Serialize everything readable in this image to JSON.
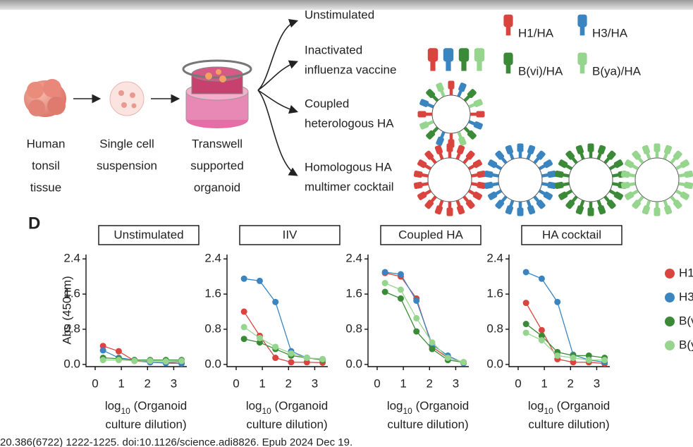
{
  "figure": {
    "steps": [
      {
        "lines": [
          "Human",
          "tonsil",
          "tissue"
        ]
      },
      {
        "lines": [
          "Single cell",
          "suspension"
        ]
      },
      {
        "lines": [
          "Transwell",
          "supported",
          "organoid"
        ]
      }
    ],
    "conditions": [
      {
        "lines": [
          "Unstimulated"
        ]
      },
      {
        "lines": [
          "Inactivated",
          "influenza vaccine"
        ]
      },
      {
        "lines": [
          "Coupled",
          "heterologous HA"
        ]
      },
      {
        "lines": [
          "Homologous HA",
          "multimer cocktail"
        ]
      }
    ],
    "proteins": [
      "H1/HA",
      "H3/HA",
      "B(vi)/HA",
      "B(ya)/HA"
    ],
    "panel_label": "D",
    "citation": "20.386(6722) 1222-1225. doi:10.1126/science.adi8826. Epub 2024 Dec 19."
  },
  "chart_data": [
    {
      "type": "line",
      "title": "Unstimulated",
      "ylabel": "Abs (450nm)",
      "xlabel": {
        "text": "log",
        "subscript": "10",
        "rest": " (Organoid",
        "line2": "culture dilution)"
      },
      "x": [
        0.3,
        0.9,
        1.5,
        2.1,
        2.7,
        3.3
      ],
      "xlim": [
        -0.35,
        3.5
      ],
      "xticks": [
        0,
        1,
        2,
        3
      ],
      "ylim": [
        -0.05,
        2.5
      ],
      "yticks": [
        {
          "value": 0,
          "label": "0.0"
        },
        0.8,
        1.6,
        2.4
      ],
      "series": [
        {
          "name": "H1",
          "color": "#d9453e",
          "values": [
            0.42,
            0.3,
            0.08,
            0.05,
            0.04,
            0.06
          ]
        },
        {
          "name": "H3",
          "color": "#3a84c0",
          "values": [
            0.32,
            0.15,
            0.1,
            0.05,
            0.03,
            0.02
          ]
        },
        {
          "name": "B(vi)",
          "color": "#3a8a37",
          "values": [
            0.15,
            0.13,
            0.1,
            0.1,
            0.1,
            0.1
          ]
        },
        {
          "name": "B(ya)",
          "color": "#95d58e",
          "values": [
            0.1,
            0.1,
            0.08,
            0.08,
            0.07,
            0.08
          ]
        }
      ]
    },
    {
      "type": "line",
      "title": "IIV",
      "xlabel": {
        "text": "log",
        "subscript": "10",
        "rest": " (Organoid",
        "line2": "culture dilution)"
      },
      "x": [
        0.3,
        0.9,
        1.5,
        2.1,
        2.7,
        3.3
      ],
      "xlim": [
        -0.35,
        3.5
      ],
      "xticks": [
        0,
        1,
        2,
        3
      ],
      "ylim": [
        -0.05,
        2.5
      ],
      "yticks": [
        {
          "value": 0,
          "label": "0.0"
        },
        0.8,
        1.6,
        2.4
      ],
      "series": [
        {
          "name": "H1",
          "color": "#d9453e",
          "values": [
            1.2,
            0.65,
            0.15,
            0.05,
            0.05,
            0.04
          ]
        },
        {
          "name": "H3",
          "color": "#3a84c0",
          "values": [
            1.95,
            1.9,
            1.42,
            0.3,
            0.15,
            0.12
          ]
        },
        {
          "name": "B(vi)",
          "color": "#3a8a37",
          "values": [
            0.58,
            0.5,
            0.35,
            0.2,
            0.15,
            0.1
          ]
        },
        {
          "name": "B(ya)",
          "color": "#95d58e",
          "values": [
            0.85,
            0.6,
            0.4,
            0.25,
            0.15,
            0.12
          ]
        }
      ]
    },
    {
      "type": "line",
      "title": "Coupled HA",
      "xlabel": {
        "text": "log",
        "subscript": "10",
        "rest": " (Organoid",
        "line2": "culture dilution)"
      },
      "x": [
        0.3,
        0.9,
        1.5,
        2.1,
        2.7,
        3.3
      ],
      "xlim": [
        -0.35,
        3.5
      ],
      "xticks": [
        0,
        1,
        2,
        3
      ],
      "ylim": [
        -0.05,
        2.5
      ],
      "yticks": [
        {
          "value": 0,
          "label": "0.0"
        },
        0.8,
        1.6,
        2.4
      ],
      "series": [
        {
          "name": "H1",
          "color": "#d9453e",
          "values": [
            2.08,
            2.0,
            1.5,
            0.4,
            0.15,
            0.05
          ]
        },
        {
          "name": "H3",
          "color": "#3a84c0",
          "values": [
            2.1,
            2.05,
            1.45,
            0.45,
            0.2,
            0.03
          ]
        },
        {
          "name": "B(vi)",
          "color": "#3a8a37",
          "values": [
            1.65,
            1.5,
            0.75,
            0.35,
            0.1,
            0.05
          ]
        },
        {
          "name": "B(ya)",
          "color": "#95d58e",
          "values": [
            1.85,
            1.7,
            1.05,
            0.5,
            0.15,
            0.05
          ]
        }
      ]
    },
    {
      "type": "line",
      "title": "HA cocktail",
      "legend": "right",
      "xlabel": {
        "text": "log",
        "subscript": "10",
        "rest": " (Organoid",
        "line2": "culture dilution)"
      },
      "x": [
        0.3,
        0.9,
        1.5,
        2.1,
        2.7,
        3.3
      ],
      "xlim": [
        -0.35,
        3.5
      ],
      "xticks": [
        0,
        1,
        2,
        3
      ],
      "ylim": [
        -0.05,
        2.5
      ],
      "yticks": [
        {
          "value": 0,
          "label": "0.0"
        },
        0.8,
        1.6,
        2.4
      ],
      "series": [
        {
          "name": "H1",
          "color": "#d9453e",
          "values": [
            1.4,
            0.78,
            0.12,
            0.05,
            0.05,
            0.02
          ]
        },
        {
          "name": "H3",
          "color": "#3a84c0",
          "values": [
            2.1,
            1.95,
            1.42,
            0.22,
            0.1,
            0.05
          ]
        },
        {
          "name": "B(vi)",
          "color": "#3a8a37",
          "values": [
            0.92,
            0.65,
            0.28,
            0.2,
            0.2,
            0.15
          ]
        },
        {
          "name": "B(ya)",
          "color": "#95d58e",
          "values": [
            0.72,
            0.55,
            0.2,
            0.15,
            0.1,
            0.1
          ]
        }
      ]
    }
  ]
}
